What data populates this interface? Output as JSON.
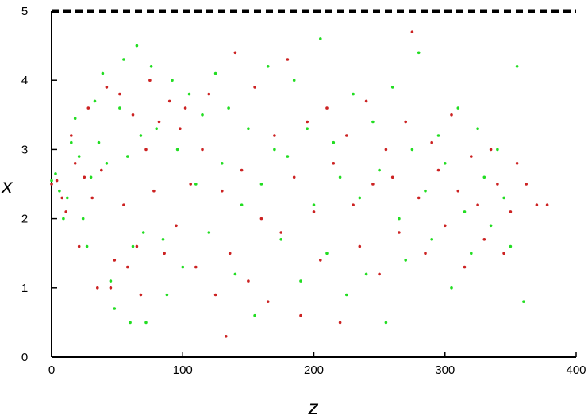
{
  "chart_data": {
    "type": "scatter",
    "title": "",
    "xlabel": "z",
    "ylabel": "x",
    "xlim": [
      0,
      400
    ],
    "ylim": [
      0,
      5
    ],
    "xticks": [
      0,
      100,
      200,
      300,
      400
    ],
    "yticks": [
      0,
      1,
      2,
      3,
      4,
      5
    ],
    "grid": false,
    "legend": "none",
    "reference_line": {
      "y": 5,
      "style": "dashed",
      "color": "#000000"
    },
    "series": [
      {
        "color": "#22dd22",
        "points": [
          [
            0,
            2.55
          ],
          [
            3,
            2.65
          ],
          [
            6,
            2.4
          ],
          [
            9,
            2.0
          ],
          [
            12,
            2.3
          ],
          [
            15,
            3.1
          ],
          [
            18,
            3.45
          ],
          [
            21,
            2.9
          ],
          [
            24,
            2.0
          ],
          [
            27,
            1.6
          ],
          [
            30,
            2.6
          ],
          [
            33,
            3.7
          ],
          [
            36,
            3.1
          ],
          [
            39,
            4.1
          ],
          [
            42,
            2.8
          ],
          [
            45,
            1.1
          ],
          [
            48,
            0.7
          ],
          [
            52,
            3.6
          ],
          [
            55,
            4.3
          ],
          [
            58,
            2.9
          ],
          [
            60,
            0.5
          ],
          [
            62,
            1.6
          ],
          [
            65,
            4.5
          ],
          [
            68,
            3.2
          ],
          [
            70,
            1.8
          ],
          [
            72,
            0.5
          ],
          [
            76,
            4.2
          ],
          [
            80,
            3.3
          ],
          [
            85,
            1.7
          ],
          [
            88,
            0.9
          ],
          [
            92,
            4.0
          ],
          [
            96,
            3.0
          ],
          [
            100,
            1.3
          ],
          [
            105,
            3.8
          ],
          [
            110,
            2.5
          ],
          [
            115,
            3.5
          ],
          [
            120,
            1.8
          ],
          [
            125,
            4.1
          ],
          [
            130,
            2.8
          ],
          [
            135,
            3.6
          ],
          [
            140,
            1.2
          ],
          [
            145,
            2.2
          ],
          [
            150,
            3.3
          ],
          [
            155,
            0.6
          ],
          [
            160,
            2.5
          ],
          [
            165,
            4.2
          ],
          [
            170,
            3.0
          ],
          [
            175,
            1.7
          ],
          [
            180,
            2.9
          ],
          [
            185,
            4.0
          ],
          [
            190,
            1.1
          ],
          [
            195,
            3.3
          ],
          [
            200,
            2.2
          ],
          [
            205,
            4.6
          ],
          [
            210,
            1.5
          ],
          [
            215,
            3.1
          ],
          [
            220,
            2.6
          ],
          [
            225,
            0.9
          ],
          [
            230,
            3.8
          ],
          [
            235,
            2.3
          ],
          [
            240,
            1.2
          ],
          [
            245,
            3.4
          ],
          [
            250,
            2.7
          ],
          [
            255,
            0.5
          ],
          [
            260,
            3.9
          ],
          [
            265,
            2.0
          ],
          [
            270,
            1.4
          ],
          [
            275,
            3.0
          ],
          [
            280,
            4.4
          ],
          [
            285,
            2.4
          ],
          [
            290,
            1.7
          ],
          [
            295,
            3.2
          ],
          [
            300,
            2.8
          ],
          [
            305,
            1.0
          ],
          [
            310,
            3.6
          ],
          [
            315,
            2.1
          ],
          [
            320,
            1.5
          ],
          [
            325,
            3.3
          ],
          [
            330,
            2.6
          ],
          [
            335,
            1.9
          ],
          [
            340,
            3.0
          ],
          [
            345,
            2.3
          ],
          [
            350,
            1.6
          ],
          [
            355,
            4.2
          ],
          [
            360,
            0.8
          ]
        ]
      },
      {
        "color": "#cc2222",
        "points": [
          [
            0,
            2.5
          ],
          [
            4,
            2.55
          ],
          [
            8,
            2.3
          ],
          [
            11,
            2.1
          ],
          [
            15,
            3.2
          ],
          [
            18,
            2.8
          ],
          [
            21,
            1.6
          ],
          [
            25,
            2.6
          ],
          [
            28,
            3.6
          ],
          [
            31,
            2.3
          ],
          [
            35,
            1.0
          ],
          [
            38,
            2.7
          ],
          [
            42,
            3.9
          ],
          [
            45,
            1.0
          ],
          [
            48,
            1.4
          ],
          [
            52,
            3.8
          ],
          [
            55,
            2.2
          ],
          [
            58,
            1.3
          ],
          [
            62,
            3.5
          ],
          [
            65,
            1.6
          ],
          [
            68,
            0.9
          ],
          [
            72,
            3.0
          ],
          [
            75,
            4.0
          ],
          [
            78,
            2.4
          ],
          [
            82,
            3.4
          ],
          [
            86,
            1.5
          ],
          [
            90,
            3.7
          ],
          [
            95,
            1.9
          ],
          [
            98,
            3.3
          ],
          [
            102,
            3.6
          ],
          [
            106,
            2.5
          ],
          [
            110,
            1.3
          ],
          [
            115,
            3.0
          ],
          [
            120,
            3.8
          ],
          [
            125,
            0.9
          ],
          [
            130,
            2.4
          ],
          [
            133,
            0.3
          ],
          [
            136,
            1.5
          ],
          [
            140,
            4.4
          ],
          [
            145,
            2.7
          ],
          [
            150,
            1.1
          ],
          [
            155,
            3.9
          ],
          [
            160,
            2.0
          ],
          [
            165,
            0.8
          ],
          [
            170,
            3.2
          ],
          [
            175,
            1.8
          ],
          [
            180,
            4.3
          ],
          [
            185,
            2.6
          ],
          [
            190,
            0.6
          ],
          [
            195,
            3.4
          ],
          [
            200,
            2.1
          ],
          [
            205,
            1.4
          ],
          [
            210,
            3.6
          ],
          [
            215,
            2.8
          ],
          [
            220,
            0.5
          ],
          [
            225,
            3.2
          ],
          [
            230,
            2.2
          ],
          [
            235,
            1.6
          ],
          [
            240,
            3.7
          ],
          [
            245,
            2.5
          ],
          [
            250,
            1.2
          ],
          [
            255,
            3.0
          ],
          [
            260,
            2.6
          ],
          [
            265,
            1.8
          ],
          [
            270,
            3.4
          ],
          [
            275,
            4.7
          ],
          [
            280,
            2.3
          ],
          [
            285,
            1.5
          ],
          [
            290,
            3.1
          ],
          [
            295,
            2.7
          ],
          [
            300,
            1.9
          ],
          [
            305,
            3.5
          ],
          [
            310,
            2.4
          ],
          [
            315,
            1.3
          ],
          [
            320,
            2.9
          ],
          [
            325,
            2.2
          ],
          [
            330,
            1.7
          ],
          [
            335,
            3.0
          ],
          [
            340,
            2.5
          ],
          [
            345,
            1.5
          ],
          [
            350,
            2.1
          ],
          [
            355,
            2.8
          ],
          [
            362,
            2.5
          ],
          [
            370,
            2.2
          ],
          [
            378,
            2.2
          ]
        ]
      }
    ]
  }
}
